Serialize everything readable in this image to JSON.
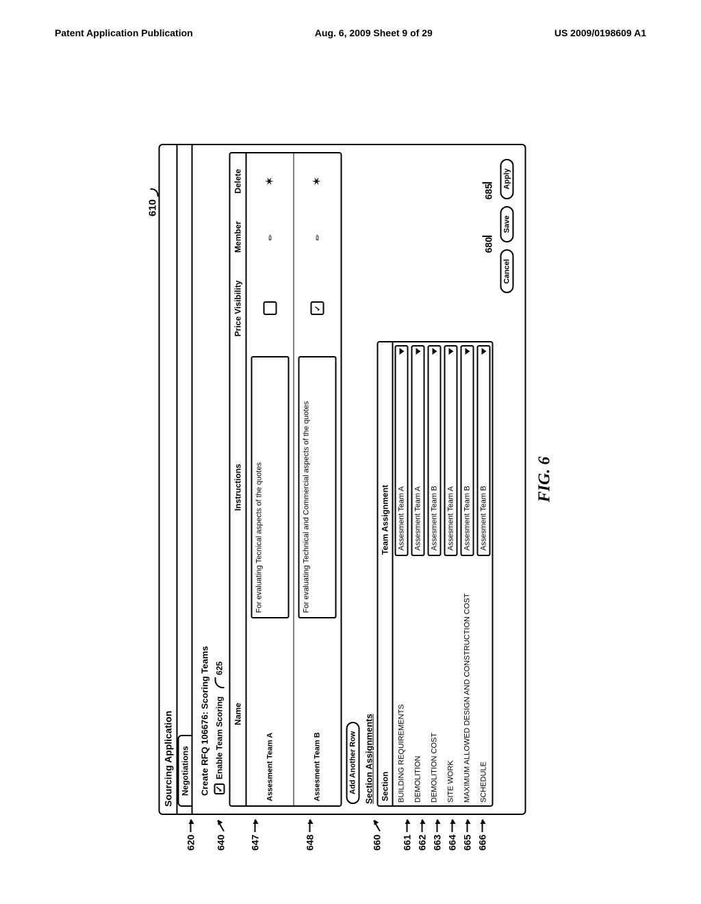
{
  "header": {
    "left": "Patent Application Publication",
    "center": "Aug. 6, 2009  Sheet 9 of 29",
    "right": "US 2009/0198609 A1"
  },
  "refs": {
    "main": "610",
    "title": "620",
    "enable": "625",
    "teams_box": "640",
    "team_a": "647",
    "team_b": "648",
    "sections": "660",
    "s1": "661",
    "s2": "662",
    "s3": "663",
    "s4": "664",
    "s5": "665",
    "s6": "666",
    "save": "680",
    "apply": "685"
  },
  "app": {
    "title": "Sourcing Application",
    "tab": "Negotiations",
    "page_title": "Create RFQ 106676: Scoring Teams",
    "enable_label": "Enable Team Scoring",
    "enable_checked": "✓"
  },
  "teams": {
    "col_name": "Name",
    "col_instr": "Instructions",
    "col_pv": "Price Visibility",
    "col_member": "Member",
    "col_delete": "Delete",
    "rows": [
      {
        "name": "Assesment Team A",
        "instr": "For evaluating Tecnical aspects of the quotes",
        "pv": ""
      },
      {
        "name": "Assesment Team B",
        "instr": "For evaluating Technical and Commercial aspects of the quotes",
        "pv": "✓"
      }
    ]
  },
  "add_row": "Add Another Row",
  "sections_title": "Section Assignments",
  "sections": {
    "col_section": "Section",
    "col_team": "Team Assignment",
    "rows": [
      {
        "section": "BUILDING REQUIREMENTS",
        "team": "Assesment Team A"
      },
      {
        "section": "DEMOLITION",
        "team": "Assesment Team A"
      },
      {
        "section": "DEMOLITION COST",
        "team": "Assesment Team B"
      },
      {
        "section": "SITE WORK",
        "team": "Assesment Team A"
      },
      {
        "section": "MAXIMUM ALLOWED DESIGN AND CONSTRUCTION COST",
        "team": "Assesment Team B"
      },
      {
        "section": "SCHEDULE",
        "team": "Assesment Team B"
      }
    ]
  },
  "buttons": {
    "cancel": "Cancel",
    "save": "Save",
    "apply": "Apply"
  },
  "figure": "FIG. 6"
}
